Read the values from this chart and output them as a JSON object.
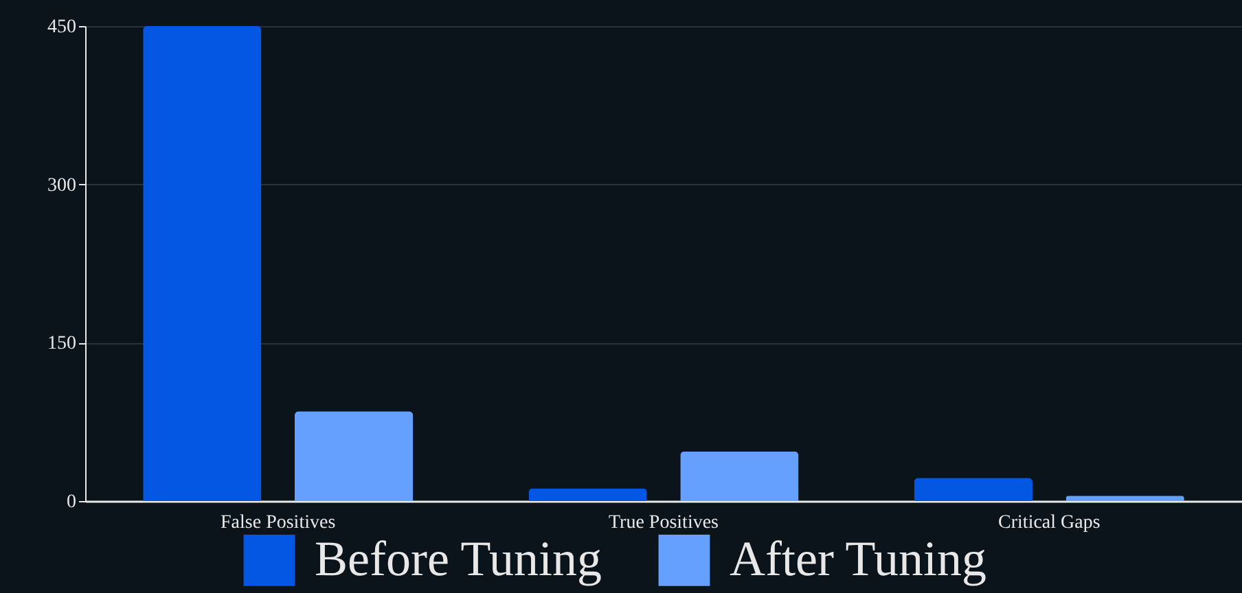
{
  "chart_data": {
    "type": "bar",
    "categories": [
      "False Positives",
      "True Positives",
      "Critical Gaps"
    ],
    "series": [
      {
        "name": "Before Tuning",
        "color": "#0457e3",
        "values": [
          450,
          12,
          22
        ]
      },
      {
        "name": "After Tuning",
        "color": "#66a0ff",
        "values": [
          85,
          47,
          5
        ]
      }
    ],
    "ylim": [
      0,
      450
    ],
    "yticks": [
      0,
      150,
      300,
      450
    ],
    "grid": "y",
    "legend": "bottom"
  }
}
